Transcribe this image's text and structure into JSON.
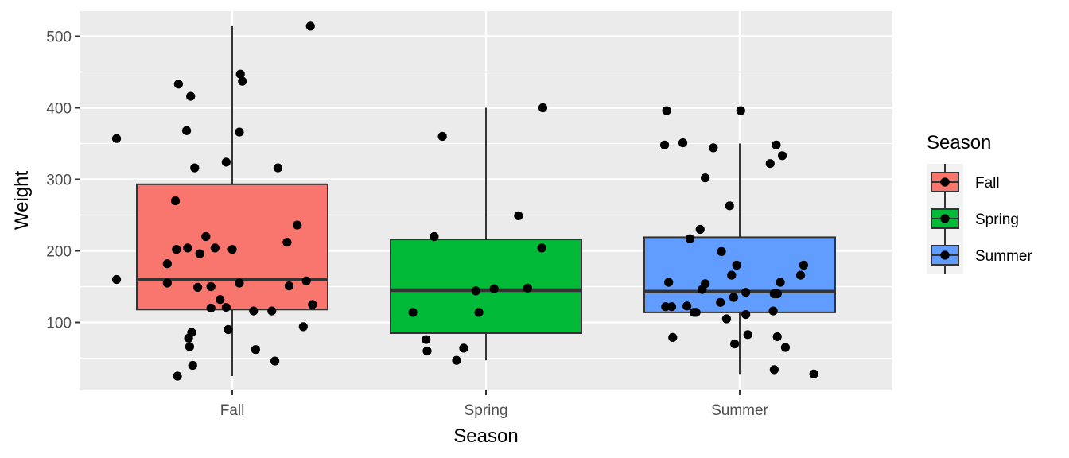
{
  "chart_data": {
    "type": "boxplot",
    "xlabel": "Season",
    "ylabel": "Weight",
    "categories": [
      "Fall",
      "Spring",
      "Summer"
    ],
    "ylim": [
      5,
      535
    ],
    "yticks": [
      100,
      200,
      300,
      400,
      500
    ],
    "grid": true,
    "legend": {
      "title": "Season",
      "position": "right",
      "entries": [
        "Fall",
        "Spring",
        "Summer"
      ]
    },
    "colors": {
      "Fall": "#F8766D",
      "Spring": "#00BA38",
      "Summer": "#619CFF",
      "panel": "#EBEBEB",
      "grid": "#FFFFFF"
    },
    "series": [
      {
        "name": "Fall",
        "box": {
          "lower_whisker": 25,
          "q1": 118,
          "median": 160,
          "q3": 293,
          "upper_whisker": 514
        },
        "points": [
          [
            -1.14,
            357
          ],
          [
            -0.53,
            433
          ],
          [
            -0.41,
            416
          ],
          [
            -0.45,
            368
          ],
          [
            -0.37,
            316
          ],
          [
            -0.56,
            270
          ],
          [
            -0.64,
            182
          ],
          [
            -0.55,
            202
          ],
          [
            -0.44,
            204
          ],
          [
            -0.64,
            155
          ],
          [
            -1.14,
            160
          ],
          [
            -0.32,
            196
          ],
          [
            -0.26,
            220
          ],
          [
            -0.17,
            204
          ],
          [
            -0.34,
            149
          ],
          [
            -0.21,
            150
          ],
          [
            -0.12,
            132
          ],
          [
            -0.21,
            120
          ],
          [
            -0.54,
            25
          ],
          [
            -0.43,
            78
          ],
          [
            -0.42,
            66
          ],
          [
            -0.4,
            86
          ],
          [
            -0.39,
            40
          ],
          [
            -0.06,
            324
          ],
          [
            0.08,
            447
          ],
          [
            0.1,
            437
          ],
          [
            0.07,
            366
          ],
          [
            -0.06,
            121
          ],
          [
            0.0,
            202
          ],
          [
            -0.04,
            90
          ],
          [
            0.07,
            155
          ],
          [
            0.21,
            116
          ],
          [
            0.23,
            62
          ],
          [
            0.39,
            116
          ],
          [
            0.42,
            46
          ],
          [
            0.45,
            316
          ],
          [
            0.54,
            212
          ],
          [
            0.56,
            151
          ],
          [
            0.64,
            236
          ],
          [
            0.7,
            94
          ],
          [
            0.73,
            158
          ],
          [
            0.79,
            125
          ],
          [
            0.77,
            514
          ]
        ]
      },
      {
        "name": "Spring",
        "box": {
          "lower_whisker": 47,
          "q1": 85,
          "median": 145,
          "q3": 216,
          "upper_whisker": 400
        },
        "points": [
          [
            -0.72,
            114
          ],
          [
            -0.59,
            76
          ],
          [
            -0.58,
            60
          ],
          [
            -0.51,
            220
          ],
          [
            -0.43,
            360
          ],
          [
            -0.29,
            47
          ],
          [
            -0.22,
            64
          ],
          [
            -0.1,
            144
          ],
          [
            -0.07,
            114
          ],
          [
            0.08,
            147
          ],
          [
            0.32,
            249
          ],
          [
            0.41,
            148
          ],
          [
            0.55,
            204
          ],
          [
            0.56,
            400
          ]
        ]
      },
      {
        "name": "Summer",
        "box": {
          "lower_whisker": 28,
          "q1": 114,
          "median": 143,
          "q3": 219,
          "upper_whisker": 350
        },
        "points": [
          [
            -0.72,
            396
          ],
          [
            -0.74,
            348
          ],
          [
            -0.56,
            351
          ],
          [
            -0.73,
            122
          ],
          [
            -0.7,
            156
          ],
          [
            -0.67,
            122
          ],
          [
            -0.66,
            79
          ],
          [
            -0.52,
            123
          ],
          [
            -0.45,
            114
          ],
          [
            -0.43,
            114
          ],
          [
            -0.49,
            217
          ],
          [
            -0.39,
            230
          ],
          [
            -0.34,
            302
          ],
          [
            -0.26,
            344
          ],
          [
            -0.37,
            146
          ],
          [
            -0.34,
            154
          ],
          [
            -0.18,
            199
          ],
          [
            -0.19,
            128
          ],
          [
            -0.13,
            105
          ],
          [
            -0.1,
            263
          ],
          [
            -0.08,
            166
          ],
          [
            -0.06,
            135
          ],
          [
            -0.03,
            180
          ],
          [
            -0.05,
            70
          ],
          [
            0.01,
            396
          ],
          [
            0.06,
            142
          ],
          [
            0.06,
            111
          ],
          [
            0.08,
            83
          ],
          [
            0.37,
            80
          ],
          [
            0.3,
            322
          ],
          [
            0.36,
            348
          ],
          [
            0.42,
            333
          ],
          [
            0.4,
            156
          ],
          [
            0.34,
            140
          ],
          [
            0.37,
            140
          ],
          [
            0.33,
            116
          ],
          [
            0.34,
            34
          ],
          [
            0.45,
            65
          ],
          [
            0.6,
            166
          ],
          [
            0.63,
            180
          ],
          [
            0.73,
            28
          ]
        ]
      }
    ]
  }
}
